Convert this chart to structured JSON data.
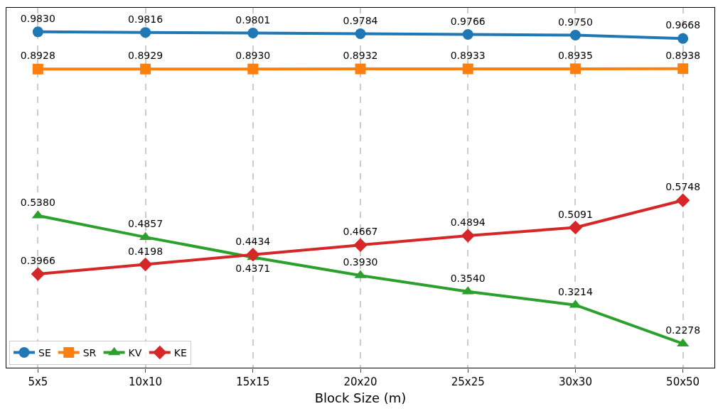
{
  "chart_data": {
    "type": "line",
    "xlabel": "Block Size (m)",
    "categories": [
      "5x5",
      "10x10",
      "15x15",
      "20x20",
      "25x25",
      "30x30",
      "50x50"
    ],
    "series": [
      {
        "name": "SE",
        "color": "#1f77b4",
        "marker": "circle",
        "values": [
          0.983,
          0.9816,
          0.9801,
          0.9784,
          0.9766,
          0.975,
          0.9668
        ],
        "value_labels": [
          "0.9830",
          "0.9816",
          "0.9801",
          "0.9784",
          "0.9766",
          "0.9750",
          "0.9668"
        ]
      },
      {
        "name": "SR",
        "color": "#ff7f0e",
        "marker": "square",
        "values": [
          0.8928,
          0.8929,
          0.893,
          0.8932,
          0.8933,
          0.8935,
          0.8938
        ],
        "value_labels": [
          "0.8928",
          "0.8929",
          "0.8930",
          "0.8932",
          "0.8933",
          "0.8935",
          "0.8938"
        ]
      },
      {
        "name": "KV",
        "color": "#2ca02c",
        "marker": "triangle",
        "values": [
          0.538,
          0.4857,
          0.4371,
          0.393,
          0.354,
          0.3214,
          0.2278
        ],
        "value_labels": [
          "0.5380",
          "0.4857",
          "0.4371",
          "0.3930",
          "0.3540",
          "0.3214",
          "0.2278"
        ]
      },
      {
        "name": "KE",
        "color": "#d62728",
        "marker": "diamond",
        "values": [
          0.3966,
          0.4198,
          0.4434,
          0.4667,
          0.4894,
          0.5091,
          0.5748
        ],
        "value_labels": [
          "0.3966",
          "0.4198",
          "0.4434",
          "0.4667",
          "0.4894",
          "0.5091",
          "0.5748"
        ]
      }
    ],
    "grid": "x",
    "legend": "bottom left",
    "tick_labels": "x",
    "line_style": "solid"
  }
}
